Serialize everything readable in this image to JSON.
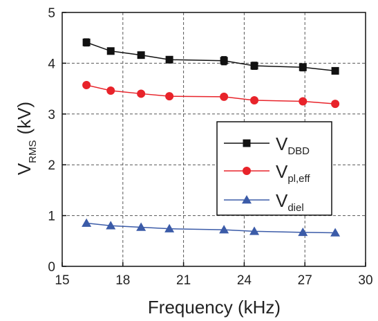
{
  "chart_data": {
    "type": "line",
    "xlabel": "Frequency (kHz)",
    "ylabel": {
      "main": "V",
      "sub": "RMS",
      "unit": "(kV)"
    },
    "xlim": [
      15,
      30
    ],
    "ylim": [
      0,
      5
    ],
    "xticks": [
      "15",
      "18",
      "21",
      "24",
      "27",
      "30"
    ],
    "yticks": [
      "0",
      "1",
      "2",
      "3",
      "4",
      "5"
    ],
    "grid": true,
    "legend_position": "right",
    "x": [
      16.2,
      17.4,
      18.9,
      20.3,
      23.0,
      24.5,
      26.9,
      28.5
    ],
    "series": [
      {
        "name": {
          "main": "V",
          "sub": "DBD"
        },
        "color": "#111111",
        "marker": "square",
        "values": [
          4.41,
          4.24,
          4.16,
          4.07,
          4.05,
          3.95,
          3.92,
          3.85
        ],
        "errors": [
          0.07,
          0.06,
          0.06,
          0.05,
          0.08,
          0.07,
          0.07,
          0.06
        ]
      },
      {
        "name": {
          "main": "V",
          "sub": "pl,eff"
        },
        "color": "#e8232a",
        "marker": "circle",
        "values": [
          3.57,
          3.46,
          3.4,
          3.35,
          3.34,
          3.27,
          3.25,
          3.2
        ]
      },
      {
        "name": {
          "main": "V",
          "sub": "diel"
        },
        "color": "#3b5ba8",
        "marker": "triangle",
        "values": [
          0.85,
          0.8,
          0.77,
          0.74,
          0.72,
          0.69,
          0.67,
          0.66
        ]
      }
    ]
  }
}
